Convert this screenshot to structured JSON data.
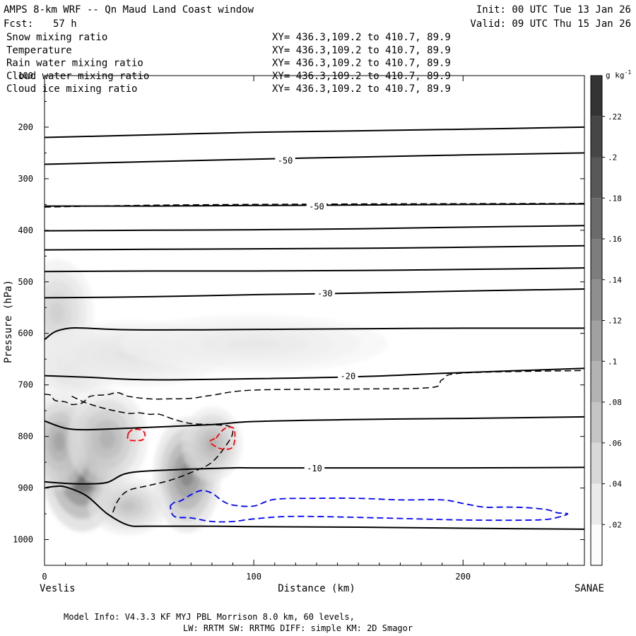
{
  "header": {
    "title": "AMPS 8-km WRF -- Qn Maud Land Coast window",
    "forecast_label": "Fcst:",
    "forecast_hours": "57 h",
    "init": "Init: 00 UTC Tue 13 Jan 26",
    "valid": "Valid: 09 UTC Thu 15 Jan 26"
  },
  "fields": [
    {
      "name": "Snow mixing ratio",
      "xy": "XY= 436.3,109.2 to 410.7, 89.9",
      "color": "#000000"
    },
    {
      "name": "Temperature",
      "xy": "XY= 436.3,109.2 to 410.7, 89.9",
      "color": "#000000"
    },
    {
      "name": "Rain water mixing ratio",
      "xy": "XY= 436.3,109.2 to 410.7, 89.9",
      "color": "#ff0000"
    },
    {
      "name": "Cloud water mixing ratio",
      "xy": "XY= 436.3,109.2 to 410.7, 89.9",
      "color": "#0000ff"
    },
    {
      "name": "Cloud ice mixing ratio",
      "xy": "XY= 436.3,109.2 to 410.7, 89.9",
      "color": "#000000"
    }
  ],
  "footer": {
    "line1": "Model Info: V4.3.3   KF      MYJ PBL  Morrison             8.0 km,  60 levels,",
    "line2": "LW: RRTM SW: RRTMG   DIFF: simple KM: 2D Smagor"
  },
  "chart_data": {
    "type": "cross-section",
    "xlabel": "Distance (km)",
    "ylabel": "Pressure (hPa)",
    "xlim": [
      0,
      258
    ],
    "ylim": [
      1050,
      100
    ],
    "x_ticks": [
      "0",
      "100",
      "200"
    ],
    "x_tick_values": [
      0,
      100,
      200
    ],
    "y_ticks": [
      "100",
      "200",
      "300",
      "400",
      "500",
      "600",
      "700",
      "800",
      "900",
      "1000"
    ],
    "y_tick_values": [
      100,
      200,
      300,
      400,
      500,
      600,
      700,
      800,
      900,
      1000
    ],
    "left_endpoint": "Veslis",
    "right_endpoint": "SANAE",
    "colorbar": {
      "unit": "g kg",
      "unit_exp": "-1",
      "labels": [
        ".02",
        ".04",
        ".06",
        ".08",
        ".1",
        ".12",
        ".14",
        ".16",
        ".18",
        ".2",
        ".22"
      ],
      "values": [
        0.02,
        0.04,
        0.06,
        0.08,
        0.1,
        0.12,
        0.14,
        0.16,
        0.18,
        0.2,
        0.22
      ],
      "max": 0.24
    },
    "temperature_contours": [
      {
        "x": [
          0,
          50,
          100,
          150,
          200,
          258
        ],
        "p": [
          220,
          215,
          210,
          207,
          204,
          200
        ]
      },
      {
        "x": [
          0,
          50,
          100,
          150,
          200,
          258
        ],
        "p": [
          272,
          267,
          262,
          258,
          254,
          250
        ]
      },
      {
        "x": [
          0,
          50,
          100,
          150,
          200,
          258
        ],
        "p": [
          353,
          353,
          352,
          351,
          350,
          349
        ]
      },
      {
        "x": [
          0,
          50,
          100,
          150,
          200,
          258
        ],
        "p": [
          401,
          400,
          399,
          397,
          394,
          391
        ]
      },
      {
        "x": [
          0,
          50,
          100,
          150,
          200,
          258
        ],
        "p": [
          438,
          437,
          436,
          435,
          433,
          430
        ]
      },
      {
        "x": [
          0,
          50,
          100,
          150,
          200,
          258
        ],
        "p": [
          480,
          479,
          479,
          478,
          476,
          473
        ]
      },
      {
        "x": [
          0,
          50,
          100,
          150,
          200,
          258
        ],
        "p": [
          531,
          529,
          525,
          522,
          518,
          514
        ]
      },
      {
        "x": [
          0,
          5,
          12,
          20,
          40,
          80,
          150,
          200,
          258
        ],
        "p": [
          612,
          597,
          590,
          590,
          593,
          593,
          591,
          590,
          590
        ]
      },
      {
        "x": [
          0,
          20,
          50,
          100,
          150,
          200,
          258
        ],
        "p": [
          682,
          685,
          690,
          688,
          684,
          676,
          668
        ]
      },
      {
        "x": [
          0,
          10,
          20,
          40,
          80,
          100,
          150,
          200,
          258
        ],
        "p": [
          770,
          784,
          787,
          784,
          777,
          771,
          767,
          765,
          762
        ]
      },
      {
        "x": [
          0,
          10,
          20,
          30,
          40,
          60,
          90,
          100,
          150,
          200,
          258
        ],
        "p": [
          888,
          891,
          892,
          889,
          871,
          865,
          861,
          861,
          861,
          861,
          860
        ]
      },
      {
        "x": [
          0,
          5,
          10,
          20,
          30,
          40,
          50,
          80,
          100,
          150,
          200,
          258
        ],
        "p": [
          900,
          897,
          898,
          915,
          950,
          972,
          974,
          974,
          975,
          976,
          978,
          980
        ]
      }
    ],
    "temperature_labels": [
      {
        "text": "-50",
        "x": 115,
        "p": 265
      },
      {
        "text": "-50",
        "x": 130,
        "p": 354
      },
      {
        "text": "-30",
        "x": 134,
        "p": 523
      },
      {
        "text": "-20",
        "x": 145,
        "p": 683
      },
      {
        "text": "-10",
        "x": 129,
        "p": 862
      }
    ],
    "snow_contour_dashed": [
      {
        "x": [
          0,
          60,
          150,
          258
        ],
        "p": [
          355,
          351,
          349,
          348
        ]
      },
      {
        "x": [
          0,
          3,
          5,
          10,
          13,
          18,
          22,
          30,
          35,
          40,
          50,
          60,
          70,
          80,
          100,
          150,
          185,
          190,
          200,
          258
        ],
        "p": [
          718,
          720,
          730,
          733,
          738,
          735,
          722,
          719,
          715,
          722,
          727,
          727,
          726,
          720,
          710,
          708,
          705,
          690,
          677,
          672
        ]
      },
      {
        "x": [
          13,
          20,
          30,
          40,
          45,
          50,
          55,
          62,
          70,
          80,
          88,
          90,
          88,
          80,
          70,
          60,
          50,
          40,
          35,
          32
        ],
        "p": [
          722,
          735,
          747,
          755,
          754,
          757,
          757,
          767,
          775,
          777,
          780,
          790,
          810,
          850,
          870,
          885,
          895,
          905,
          925,
          955
        ]
      }
    ],
    "rain_contours": [
      {
        "x": [
          40,
          42,
          46,
          48,
          47,
          44,
          40,
          40
        ],
        "p": [
          794,
          787,
          787,
          795,
          806,
          808,
          806,
          794
        ]
      },
      {
        "x": [
          82,
          86,
          90,
          91,
          90,
          86,
          82,
          79,
          82
        ],
        "p": [
          803,
          785,
          783,
          796,
          820,
          825,
          820,
          810,
          803
        ]
      }
    ],
    "cloud_water_contours": [
      {
        "x": [
          60,
          62,
          65,
          70,
          75,
          80,
          85,
          90,
          100,
          110,
          130,
          150,
          170,
          190,
          200,
          210,
          220,
          230,
          240,
          245,
          250,
          245,
          235,
          200,
          160,
          120,
          100,
          90,
          80,
          70,
          62,
          60
        ],
        "p": [
          935,
          928,
          925,
          913,
          905,
          910,
          925,
          933,
          935,
          922,
          920,
          920,
          923,
          923,
          930,
          937,
          937,
          938,
          942,
          948,
          950,
          957,
          962,
          962,
          958,
          955,
          960,
          965,
          965,
          958,
          955,
          935
        ]
      }
    ],
    "snow_blobs": [
      {
        "x": 18,
        "p": 860,
        "sx": 12,
        "sy": 78,
        "v": 0.23
      },
      {
        "x": 7,
        "p": 810,
        "sx": 9,
        "sy": 60,
        "v": 0.11
      },
      {
        "x": 30,
        "p": 805,
        "sx": 12,
        "sy": 60,
        "v": 0.09
      },
      {
        "x": 68,
        "p": 875,
        "sx": 10,
        "sy": 70,
        "v": 0.15
      },
      {
        "x": 80,
        "p": 815,
        "sx": 9,
        "sy": 45,
        "v": 0.09
      },
      {
        "x": 6,
        "p": 560,
        "sx": 11,
        "sy": 65,
        "v": 0.05
      },
      {
        "x": 14,
        "p": 660,
        "sx": 13,
        "sy": 45,
        "v": 0.04
      },
      {
        "x": 42,
        "p": 640,
        "sx": 28,
        "sy": 40,
        "v": 0.025
      },
      {
        "x": 100,
        "p": 620,
        "sx": 40,
        "sy": 35,
        "v": 0.018
      },
      {
        "x": 40,
        "p": 935,
        "sx": 12,
        "sy": 35,
        "v": 0.07
      }
    ]
  }
}
